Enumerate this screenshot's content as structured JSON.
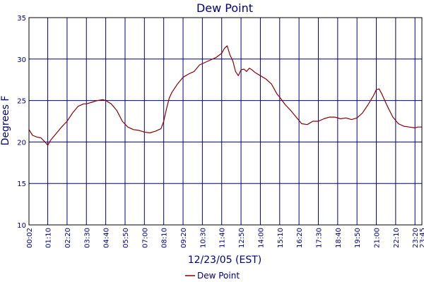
{
  "chart_data": {
    "type": "line",
    "title": "Dew Point",
    "xlabel": "12/23/05 (EST)",
    "ylabel": "Degrees F",
    "ylim": [
      10,
      35
    ],
    "y_ticks": [
      10,
      15,
      20,
      25,
      30,
      35
    ],
    "x_ticks": [
      "00:02",
      "01:10",
      "02:20",
      "03:30",
      "04:40",
      "05:50",
      "07:00",
      "08:10",
      "09:20",
      "10:30",
      "11:40",
      "12:50",
      "14:00",
      "15:10",
      "16:20",
      "17:30",
      "18:40",
      "19:50",
      "21:00",
      "22:10",
      "23:20",
      "23:45"
    ],
    "x_tick_minutes": [
      2,
      70,
      140,
      210,
      280,
      350,
      420,
      490,
      560,
      630,
      700,
      770,
      840,
      910,
      980,
      1050,
      1120,
      1190,
      1260,
      1330,
      1400,
      1425
    ],
    "xlim_minutes": [
      2,
      1425
    ],
    "grid": true,
    "legend": "bottom-center",
    "colors": {
      "line": "#8b0000",
      "grid": "#000080",
      "text": "#000080"
    },
    "series": [
      {
        "name": "Dew Point",
        "x_minutes": [
          2,
          15,
          30,
          45,
          60,
          70,
          80,
          100,
          120,
          140,
          160,
          180,
          200,
          210,
          230,
          250,
          270,
          280,
          300,
          320,
          340,
          360,
          380,
          400,
          420,
          440,
          460,
          480,
          490,
          500,
          510,
          520,
          540,
          560,
          580,
          600,
          620,
          640,
          660,
          680,
          700,
          710,
          720,
          730,
          740,
          750,
          760,
          770,
          780,
          790,
          800,
          810,
          820,
          840,
          860,
          880,
          900,
          910,
          930,
          950,
          970,
          990,
          1010,
          1030,
          1050,
          1070,
          1090,
          1110,
          1130,
          1150,
          1170,
          1190,
          1210,
          1230,
          1250,
          1260,
          1270,
          1280,
          1300,
          1320,
          1340,
          1360,
          1380,
          1400,
          1410,
          1425
        ],
        "values": [
          21.5,
          20.8,
          20.6,
          20.5,
          20.0,
          19.6,
          20.2,
          21.0,
          21.8,
          22.5,
          23.5,
          24.3,
          24.6,
          24.6,
          24.8,
          25.0,
          25.1,
          25.0,
          24.6,
          23.8,
          22.5,
          21.8,
          21.5,
          21.4,
          21.2,
          21.1,
          21.3,
          21.6,
          22.5,
          24.0,
          25.3,
          26.0,
          27.0,
          27.8,
          28.2,
          28.5,
          29.3,
          29.6,
          29.9,
          30.2,
          30.7,
          31.3,
          31.6,
          30.5,
          29.8,
          28.5,
          28.0,
          28.7,
          28.8,
          28.5,
          28.9,
          28.7,
          28.4,
          28.0,
          27.6,
          27.0,
          25.8,
          25.4,
          24.5,
          23.8,
          23.0,
          22.2,
          22.1,
          22.5,
          22.5,
          22.8,
          23.0,
          23.0,
          22.8,
          22.9,
          22.7,
          22.9,
          23.5,
          24.5,
          25.6,
          26.3,
          26.4,
          25.8,
          24.3,
          23.0,
          22.2,
          21.9,
          21.8,
          21.7,
          21.8,
          21.8
        ]
      }
    ]
  }
}
